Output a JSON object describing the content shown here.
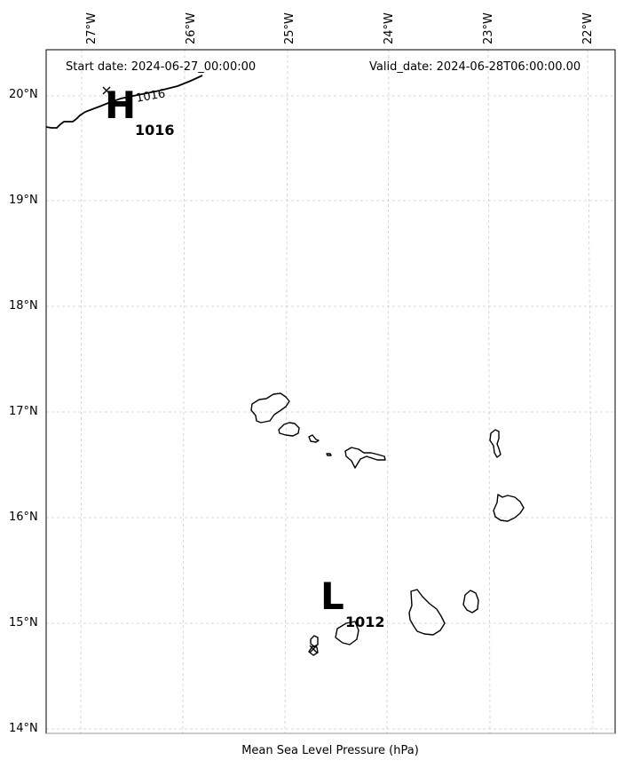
{
  "header": {
    "start_date": "Start date: 2024-06-27_00:00:00",
    "valid_date": "Valid_date: 2024-06-28T06:00:00.00"
  },
  "footer": {
    "colorbar_label": "Mean Sea Level Pressure (hPa)"
  },
  "longitude_labels": [
    "27°W",
    "26°W",
    "25°W",
    "24°W",
    "23°W",
    "22°W"
  ],
  "latitude_labels": [
    "20°N",
    "19°N",
    "18°N",
    "17°N",
    "16°N",
    "15°N",
    "14°N"
  ],
  "pressure_centers": {
    "high": {
      "letter": "H",
      "value": "1016"
    },
    "low": {
      "letter": "L",
      "value": "1012"
    }
  },
  "isobars": [
    {
      "label": "1016"
    }
  ]
}
